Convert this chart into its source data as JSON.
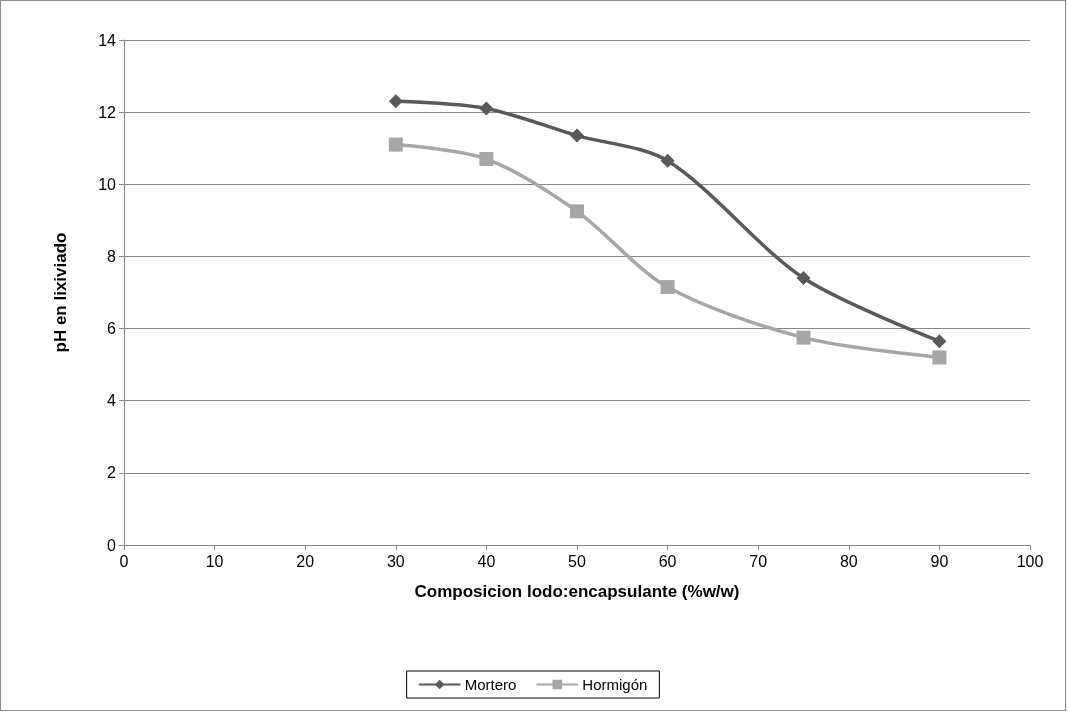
{
  "chart_data": {
    "type": "line",
    "xlabel": "Composicion lodo:encapsulante (%w/w)",
    "ylabel": "pH en lixiviado",
    "x": [
      30,
      40,
      50,
      60,
      75,
      90
    ],
    "series": [
      {
        "name": "Mortero",
        "color": "#595959",
        "marker": "diamond",
        "values": [
          12.3,
          12.1,
          11.35,
          10.65,
          7.4,
          5.65
        ]
      },
      {
        "name": "Hormigón",
        "color": "#a6a6a6",
        "marker": "square",
        "values": [
          11.1,
          10.7,
          9.25,
          7.15,
          5.75,
          5.2
        ]
      }
    ],
    "xlim": [
      0,
      100
    ],
    "xticks": [
      0,
      10,
      20,
      30,
      40,
      50,
      60,
      70,
      80,
      90,
      100
    ],
    "ylim": [
      0,
      14
    ],
    "yticks": [
      0,
      2,
      4,
      6,
      8,
      10,
      12,
      14
    ],
    "grid": "y",
    "legend": "bottom",
    "line_style": "solid"
  }
}
